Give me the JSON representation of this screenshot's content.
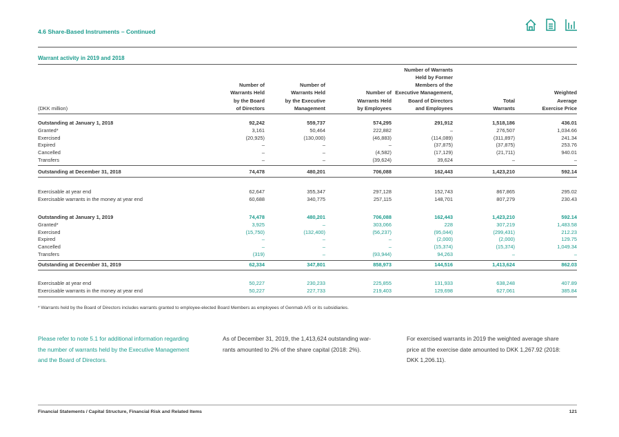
{
  "header": {
    "title": "4.6 Share-Based Instruments – Continued",
    "subtitle": "Warrant activity in 2019 and 2018"
  },
  "table": {
    "unit": "(DKK million)",
    "columns": [
      [
        "Number of",
        "Warrants Held",
        "by the Board",
        "of Directors"
      ],
      [
        "Number of",
        "Warrants Held",
        "by the Executive",
        "Management"
      ],
      [
        "Number of",
        "Warrants Held",
        "by Employees"
      ],
      [
        "Number of Warrants",
        "Held by Former",
        "Members of the",
        "Executive Management,",
        "Board of Directors",
        "and Employees"
      ],
      [
        "Total",
        "Warrants"
      ],
      [
        "Weighted",
        "Average",
        "Exercise Price"
      ]
    ],
    "blocks": [
      [
        [
          "Outstanding at January 1, 2018",
          "92,242",
          "559,737",
          "574,295",
          "291,912",
          "1,518,186",
          "436.01"
        ],
        [
          "Granted*",
          "3,161",
          "50,464",
          "222,882",
          "–",
          "276,507",
          "1,034.66"
        ],
        [
          "Exercised",
          "(20,925)",
          "(130,000)",
          "(46,883)",
          "(114,089)",
          "(311,897)",
          "241.34"
        ],
        [
          "Expired",
          "–",
          "–",
          "–",
          "(37,875)",
          "(37,875)",
          "253.76"
        ],
        [
          "Cancelled",
          "–",
          "–",
          "(4,582)",
          "(17,129)",
          "(21,711)",
          "940.01"
        ],
        [
          "Transfers",
          "–",
          "–",
          "(39,624)",
          "39,624",
          "–",
          "–"
        ]
      ],
      [
        [
          "Outstanding at December 31, 2018",
          "74,478",
          "480,201",
          "706,088",
          "162,443",
          "1,423,210",
          "592.14"
        ]
      ],
      [
        [
          "Exercisable at year end",
          "62,647",
          "355,347",
          "297,128",
          "152,743",
          "867,865",
          "295.02"
        ],
        [
          "Exercisable warrants in the money at year end",
          "60,688",
          "340,775",
          "257,115",
          "148,701",
          "807,279",
          "230.43"
        ]
      ],
      [
        [
          "Outstanding at January 1, 2019",
          "74,478",
          "480,201",
          "706,088",
          "162,443",
          "1,423,210",
          "592.14"
        ],
        [
          "Granted*",
          "3,925",
          "–",
          "303,066",
          "228",
          "307,219",
          "1,483.58"
        ],
        [
          "Exercised",
          "(15,750)",
          "(132,400)",
          "(56,237)",
          "(95,044)",
          "(299,431)",
          "212.23"
        ],
        [
          "Expired",
          "–",
          "–",
          "–",
          "(2,000)",
          "(2,000)",
          "129.75"
        ],
        [
          "Cancelled",
          "–",
          "–",
          "–",
          "(15,374)",
          "(15,374)",
          "1,049.34"
        ],
        [
          "Transfers",
          "(319)",
          "–",
          "(93,944)",
          "94,263",
          "–",
          "–"
        ]
      ],
      [
        [
          "Outstanding at December 31, 2019",
          "62,334",
          "347,801",
          "858,973",
          "144,516",
          "1,413,624",
          "862.03"
        ]
      ],
      [
        [
          "Exercisable at year end",
          "50,227",
          "230,233",
          "225,855",
          "131,933",
          "638,248",
          "407.89"
        ],
        [
          "Exercisable warrants in the money at year end",
          "50,227",
          "227,733",
          "219,403",
          "129,698",
          "627,061",
          "385.84"
        ]
      ]
    ],
    "footnote": "* Warrants held by the Board of Directors includes warrants granted to employee-elected Board Members as employees of Genmab A/S or its subsidiaries."
  },
  "paragraphs": [
    [
      "Please refer to note 5.1 for additional information regarding",
      "the number of warrants held by the Executive Management",
      "and the Board of Directors."
    ],
    [
      "As of December 31, 2019, the 1,413,624 outstanding war-",
      "rants amounted to 2% of the share capital (2018: 2%)."
    ],
    [
      "For exercised warrants in 2019 the weighted average share",
      "price at the exercise date amounted to DKK 1,267.92 (2018:",
      "DKK 1,206.11)."
    ]
  ],
  "footer": {
    "breadcrumb": "Financial Statements / Capital Structure, Financial Risk and Related Items",
    "page": "121"
  }
}
